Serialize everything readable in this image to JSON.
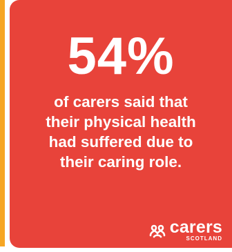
{
  "infographic": {
    "stat": "54%",
    "caption_lines": [
      "of carers said that",
      "their physical health",
      "had suffered due to",
      "their caring role."
    ]
  },
  "logo": {
    "word": "carers",
    "sub": "SCOTLAND",
    "icon": "interlinked-loops-icon"
  },
  "colors": {
    "card": "#e8433a",
    "side_strip": "#f6a623",
    "text": "#ffffff"
  }
}
